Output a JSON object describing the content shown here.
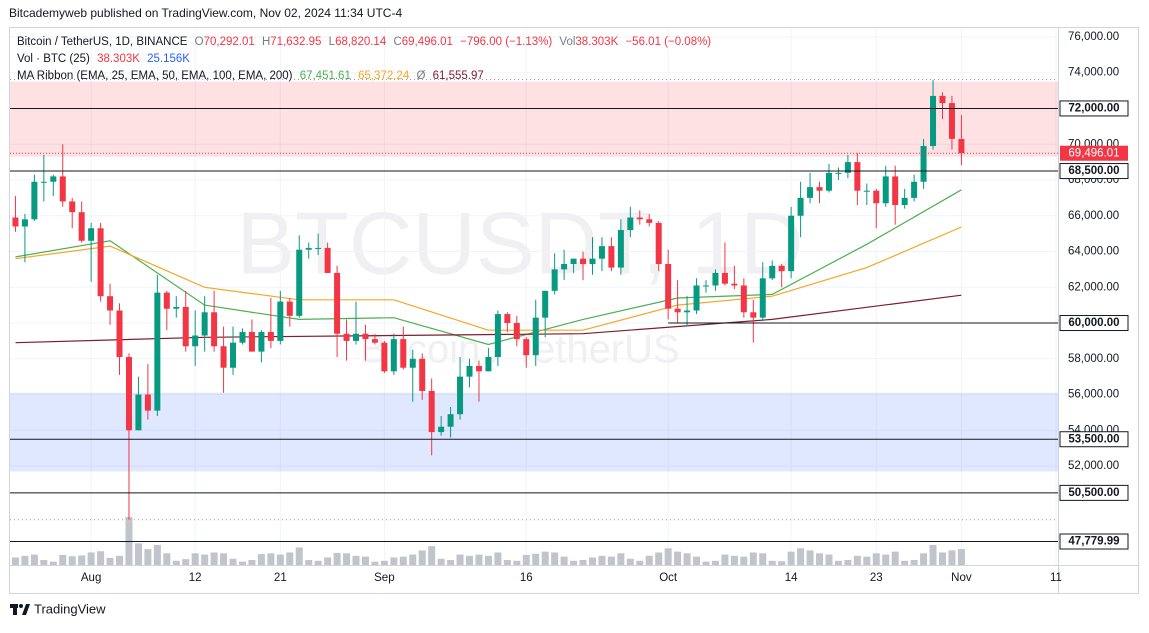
{
  "page": {
    "published": "Bitcademyweb published on TradingView.com, Nov 02, 2024 11:34 UTC-4",
    "brand": "TradingView"
  },
  "chart_data": {
    "type": "candlestick",
    "title": "Bitcoin / TetherUS, 1D, BINANCE",
    "watermark": [
      "BTCUSDT, 1D",
      "Bitcoin / TetherUS"
    ],
    "ohlc_letters": [
      "O",
      "H",
      "L",
      "C"
    ],
    "last_labels": [
      "70,292.01",
      "71,632.95",
      "68,820.14",
      "69,496.01"
    ],
    "change_label": "−796.00 (−1.13%)",
    "vol_letter": "Vol",
    "vol_label": "38.303K",
    "vol_change_label": "−56.01 (−0.08%)",
    "volume_title": "Vol · BTC (25)",
    "volume_labels": [
      "38.303K",
      "25.156K"
    ],
    "ma_title": "MA Ribbon (EMA, 25, EMA, 50, EMA, 100, EMA, 200)",
    "ma_hidden_mark": "Ø",
    "up_color": "#089981",
    "down_color": "#f23645",
    "volume_color": "#b2b5be",
    "x": [
      "2024-07-24",
      "2024-07-25",
      "2024-07-26",
      "2024-07-27",
      "2024-07-28",
      "2024-07-29",
      "2024-07-30",
      "2024-07-31",
      "2024-08-01",
      "2024-08-02",
      "2024-08-03",
      "2024-08-04",
      "2024-08-05",
      "2024-08-06",
      "2024-08-07",
      "2024-08-08",
      "2024-08-09",
      "2024-08-10",
      "2024-08-11",
      "2024-08-12",
      "2024-08-13",
      "2024-08-14",
      "2024-08-15",
      "2024-08-16",
      "2024-08-17",
      "2024-08-18",
      "2024-08-19",
      "2024-08-20",
      "2024-08-21",
      "2024-08-22",
      "2024-08-23",
      "2024-08-24",
      "2024-08-25",
      "2024-08-26",
      "2024-08-27",
      "2024-08-28",
      "2024-08-29",
      "2024-08-30",
      "2024-08-31",
      "2024-09-01",
      "2024-09-02",
      "2024-09-03",
      "2024-09-04",
      "2024-09-05",
      "2024-09-06",
      "2024-09-07",
      "2024-09-08",
      "2024-09-09",
      "2024-09-10",
      "2024-09-11",
      "2024-09-12",
      "2024-09-13",
      "2024-09-14",
      "2024-09-15",
      "2024-09-16",
      "2024-09-17",
      "2024-09-18",
      "2024-09-19",
      "2024-09-20",
      "2024-09-21",
      "2024-09-22",
      "2024-09-23",
      "2024-09-24",
      "2024-09-25",
      "2024-09-26",
      "2024-09-27",
      "2024-09-28",
      "2024-09-29",
      "2024-09-30",
      "2024-10-01",
      "2024-10-02",
      "2024-10-03",
      "2024-10-04",
      "2024-10-05",
      "2024-10-06",
      "2024-10-07",
      "2024-10-08",
      "2024-10-09",
      "2024-10-10",
      "2024-10-11",
      "2024-10-12",
      "2024-10-13",
      "2024-10-14",
      "2024-10-15",
      "2024-10-16",
      "2024-10-17",
      "2024-10-18",
      "2024-10-19",
      "2024-10-20",
      "2024-10-21",
      "2024-10-22",
      "2024-10-23",
      "2024-10-24",
      "2024-10-25",
      "2024-10-26",
      "2024-10-27",
      "2024-10-28",
      "2024-10-29",
      "2024-10-30",
      "2024-10-31",
      "2024-11-01"
    ],
    "open": [
      65900,
      65400,
      65800,
      67900,
      67900,
      68200,
      66800,
      66200,
      64600,
      65300,
      61500,
      60700,
      58100,
      54000,
      56000,
      55100,
      61700,
      60800,
      60900,
      58700,
      59300,
      60600,
      58700,
      57500,
      58900,
      59500,
      58400,
      59500,
      59000,
      61200,
      60400,
      64100,
      64200,
      64200,
      62800,
      59400,
      59000,
      59400,
      59100,
      58900,
      57300,
      59100,
      57500,
      58000,
      56200,
      53900,
      54200,
      54900,
      57000,
      57600,
      57300,
      58100,
      60500,
      60000,
      59100,
      58200,
      60300,
      61800,
      63000,
      63300,
      63600,
      63300,
      63600,
      64300,
      63100,
      65200,
      65900,
      65800,
      65600,
      63300,
      60800,
      60600,
      60700,
      62100,
      62100,
      62800,
      62200,
      62100,
      60600,
      60300,
      62500,
      63200,
      62900,
      66000,
      67000,
      67600,
      67400,
      68400,
      68400,
      69000,
      67400,
      67400,
      66700,
      68200,
      66600,
      67000,
      67900,
      69900,
      72700,
      72300,
      70292.01
    ],
    "high": [
      67100,
      66100,
      68300,
      69400,
      68300,
      70000,
      67000,
      66800,
      65600,
      65600,
      62200,
      61100,
      58300,
      57000,
      57700,
      62700,
      61800,
      61500,
      61800,
      60700,
      61500,
      61800,
      59800,
      59800,
      59700,
      60200,
      59600,
      61400,
      61800,
      61400,
      64900,
      64500,
      65000,
      64500,
      63200,
      60200,
      61200,
      59900,
      59400,
      59000,
      59400,
      59800,
      58500,
      58300,
      56900,
      54800,
      55300,
      58100,
      58000,
      57900,
      58600,
      60700,
      60600,
      60400,
      59200,
      61300,
      61800,
      63900,
      64100,
      63600,
      64000,
      64800,
      64800,
      64800,
      65800,
      66500,
      66300,
      66100,
      65700,
      64100,
      62400,
      61500,
      62500,
      62400,
      63000,
      64500,
      63200,
      62500,
      61300,
      63400,
      63500,
      63300,
      66500,
      67900,
      68400,
      67900,
      68900,
      68700,
      69400,
      69500,
      67800,
      67500,
      68800,
      68800,
      67500,
      68300,
      70300,
      73600,
      72900,
      72700,
      71632.95
    ],
    "low": [
      65100,
      63400,
      65700,
      66800,
      67100,
      66500,
      65300,
      64500,
      62300,
      61200,
      59900,
      57100,
      49000,
      54000,
      54600,
      54800,
      59600,
      60300,
      58400,
      57600,
      58400,
      58400,
      56100,
      57100,
      58800,
      58400,
      57800,
      58600,
      58800,
      59800,
      60300,
      63600,
      63800,
      62800,
      58100,
      57900,
      58800,
      57900,
      58800,
      57200,
      57100,
      57400,
      55600,
      55700,
      52600,
      53700,
      53600,
      54600,
      56400,
      55600,
      57300,
      57600,
      59500,
      58700,
      57500,
      57600,
      59200,
      61600,
      62400,
      62800,
      62400,
      62700,
      62900,
      62900,
      62700,
      64800,
      65500,
      65400,
      62900,
      60200,
      60000,
      59800,
      60500,
      61700,
      61800,
      62100,
      61900,
      60300,
      58900,
      60100,
      62400,
      62000,
      62500,
      64800,
      66700,
      66700,
      67300,
      68000,
      68100,
      66600,
      66600,
      65300,
      66500,
      65500,
      66400,
      66800,
      67500,
      69700,
      71400,
      69700,
      68820.14
    ],
    "close": [
      65400,
      65800,
      67900,
      67900,
      68200,
      66800,
      66200,
      64600,
      65300,
      61500,
      60700,
      58100,
      54000,
      56000,
      55100,
      61700,
      60800,
      60900,
      58700,
      59300,
      60600,
      58700,
      57500,
      58900,
      59500,
      58400,
      59500,
      59000,
      61200,
      60400,
      64100,
      64200,
      64200,
      62800,
      59400,
      59000,
      59400,
      59100,
      58900,
      57300,
      59100,
      57500,
      58000,
      56200,
      53900,
      54200,
      54900,
      57000,
      57600,
      57300,
      58100,
      60500,
      60000,
      59100,
      58200,
      60300,
      61800,
      63000,
      63300,
      63600,
      63300,
      63600,
      64300,
      63100,
      65200,
      65900,
      65800,
      65600,
      63300,
      60800,
      60600,
      60700,
      62100,
      62100,
      62800,
      62200,
      62100,
      60600,
      60300,
      62500,
      63200,
      62900,
      66000,
      67000,
      67600,
      67400,
      68400,
      68400,
      69000,
      67400,
      67400,
      66700,
      68200,
      66600,
      67000,
      67900,
      69900,
      72700,
      72300,
      70300,
      69496.01
    ],
    "volume": [
      18000,
      22000,
      25000,
      12000,
      8000,
      24000,
      21000,
      23000,
      30000,
      33000,
      17000,
      22000,
      115000,
      52000,
      38000,
      48000,
      28000,
      10000,
      14000,
      28000,
      25000,
      30000,
      28000,
      15000,
      8000,
      12000,
      26000,
      28000,
      25000,
      30000,
      42000,
      12000,
      10000,
      18000,
      29000,
      28000,
      22000,
      20000,
      8000,
      10000,
      18000,
      20000,
      25000,
      35000,
      45000,
      15000,
      12000,
      25000,
      22000,
      25000,
      22000,
      30000,
      12000,
      10000,
      24000,
      27000,
      32000,
      30000,
      20000,
      10000,
      12000,
      18000,
      22000,
      20000,
      28000,
      15000,
      10000,
      22000,
      30000,
      40000,
      32000,
      28000,
      20000,
      8000,
      10000,
      25000,
      22000,
      20000,
      30000,
      28000,
      10000,
      9000,
      32000,
      40000,
      35000,
      28000,
      25000,
      10000,
      12000,
      22000,
      20000,
      28000,
      25000,
      32000,
      10000,
      12000,
      28000,
      48000,
      30000,
      35000,
      38303
    ],
    "ma": [
      {
        "name": "EMA 25",
        "color": "#4caf50",
        "legend_label": "67,451.61",
        "x": [
          "2024-07-24",
          "2024-08-03",
          "2024-08-13",
          "2024-08-23",
          "2024-09-02",
          "2024-09-12",
          "2024-09-22",
          "2024-10-02",
          "2024-10-12",
          "2024-10-22",
          "2024-11-01"
        ],
        "values": [
          63700,
          64600,
          61000,
          60200,
          60300,
          58800,
          60200,
          61400,
          61600,
          64400,
          67451.61
        ]
      },
      {
        "name": "EMA 50",
        "color": "#f5a623",
        "legend_label": "65,372.24",
        "x": [
          "2024-07-24",
          "2024-08-03",
          "2024-08-13",
          "2024-08-23",
          "2024-09-02",
          "2024-09-12",
          "2024-09-22",
          "2024-10-02",
          "2024-10-12",
          "2024-10-22",
          "2024-11-01"
        ],
        "values": [
          63600,
          64300,
          62000,
          61300,
          61300,
          59600,
          59600,
          61000,
          61500,
          63100,
          65372.24
        ]
      },
      {
        "name": "EMA 200",
        "color": "#7b1e2e",
        "legend_label": "61,555.97",
        "x": [
          "2024-07-24",
          "2024-08-13",
          "2024-09-02",
          "2024-09-22",
          "2024-10-12",
          "2024-11-01"
        ],
        "values": [
          58900,
          59200,
          59300,
          59400,
          60200,
          61555.97
        ]
      }
    ],
    "zones": [
      {
        "from": 69300,
        "to": 73500,
        "color": "rgba(242,54,69,0.15)"
      },
      {
        "from": 51700,
        "to": 56100,
        "color": "rgba(41,98,255,0.15)"
      }
    ],
    "dotted_levels": [
      73620,
      49000
    ],
    "levels": [
      {
        "value": 72000,
        "label": "72,000.00"
      },
      {
        "value": 68500,
        "label": "68,500.00"
      },
      {
        "value": 60000,
        "label": "60,000.00",
        "start": "2024-10-01"
      },
      {
        "value": 53500,
        "label": "53,500.00"
      },
      {
        "value": 50500,
        "label": "50,500.00"
      },
      {
        "value": 47779.99,
        "label": "47,779.99"
      }
    ],
    "last_price": {
      "value": 69496.01,
      "label": "69,496.01"
    },
    "xlim": [
      "2024-07-23",
      "2024-11-11"
    ],
    "xticks": [
      {
        "value": "2024-08-01",
        "label": "Aug"
      },
      {
        "value": "2024-08-12",
        "label": "12"
      },
      {
        "value": "2024-08-21",
        "label": "21"
      },
      {
        "value": "2024-09-01",
        "label": "Sep"
      },
      {
        "value": "2024-09-16",
        "label": "16"
      },
      {
        "value": "2024-10-01",
        "label": "Oct"
      },
      {
        "value": "2024-10-14",
        "label": "14"
      },
      {
        "value": "2024-10-23",
        "label": "23"
      },
      {
        "value": "2024-11-01",
        "label": "Nov"
      },
      {
        "value": "2024-11-11",
        "label": "11"
      }
    ],
    "ylim": [
      46500,
      76500
    ],
    "yticks": [
      {
        "value": 52000,
        "label": "52,000.00"
      },
      {
        "value": 54000,
        "label": "54,000.00"
      },
      {
        "value": 56000,
        "label": "56,000.00"
      },
      {
        "value": 58000,
        "label": "58,000.00"
      },
      {
        "value": 60000,
        "label": "60,000.00"
      },
      {
        "value": 62000,
        "label": "62,000.00"
      },
      {
        "value": 64000,
        "label": "64,000.00"
      },
      {
        "value": 66000,
        "label": "66,000.00"
      },
      {
        "value": 68000,
        "label": "68,000.00"
      },
      {
        "value": 70000,
        "label": "70,000.00"
      },
      {
        "value": 72000,
        "label": "72,000.00"
      },
      {
        "value": 74000,
        "label": "74,000.00"
      },
      {
        "value": 76000,
        "label": "76,000.00"
      }
    ],
    "grid": true
  }
}
